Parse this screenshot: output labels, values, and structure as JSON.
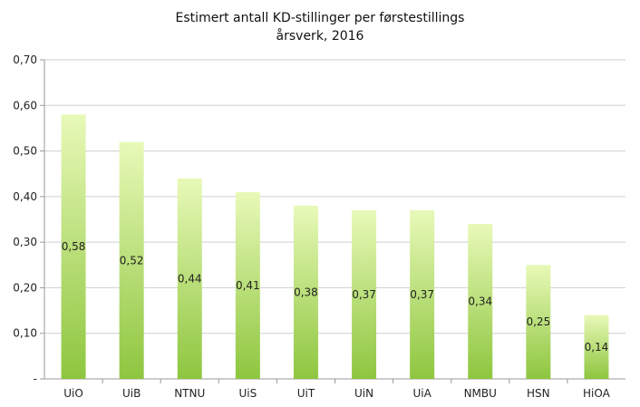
{
  "chart_data": {
    "type": "bar",
    "title_line1": "Estimert antall KD-stillinger per førstestillings",
    "title_line2": "årsverk, 2016",
    "categories": [
      "UiO",
      "UiB",
      "NTNU",
      "UiS",
      "UiT",
      "UiN",
      "UiA",
      "NMBU",
      "HSN",
      "HiOA"
    ],
    "values": [
      0.58,
      0.52,
      0.44,
      0.41,
      0.38,
      0.37,
      0.37,
      0.34,
      0.25,
      0.14
    ],
    "value_labels": [
      "0,58",
      "0,52",
      "0,44",
      "0,41",
      "0,38",
      "0,37",
      "0,37",
      "0,34",
      "0,25",
      "0,14"
    ],
    "ylim": [
      0,
      0.7
    ],
    "y_ticks": [
      0,
      0.1,
      0.2,
      0.3,
      0.4,
      0.5,
      0.6,
      0.7
    ],
    "y_tick_labels": [
      "-",
      "0,10",
      "0,20",
      "0,30",
      "0,40",
      "0,50",
      "0,60",
      "0,70"
    ],
    "grid": true,
    "xlabel": "",
    "ylabel": "",
    "colors": {
      "bar_top": "#e8f9b8",
      "bar_bottom": "#8ec63f",
      "grid": "#cfcfcf",
      "axis": "#999999",
      "text": "#222222"
    }
  }
}
